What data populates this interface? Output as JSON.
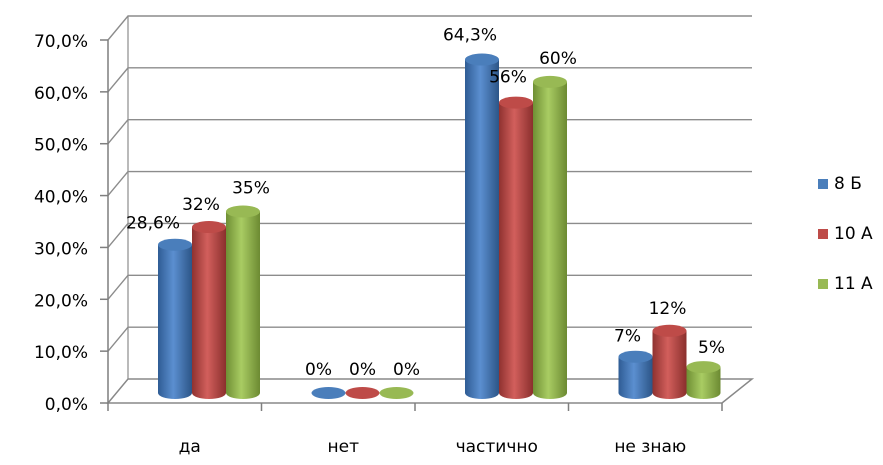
{
  "chart_data": {
    "type": "bar",
    "categories": [
      "да",
      "нет",
      "частично",
      "не знаю"
    ],
    "series": [
      {
        "name": "8 Б",
        "color": "#4a7ebb",
        "values": [
          28.6,
          0,
          64.3,
          7
        ],
        "labels": [
          "28,6%",
          "0%",
          "64,3%",
          "7%"
        ]
      },
      {
        "name": "10 А",
        "color": "#be4b48",
        "values": [
          32,
          0,
          56,
          12
        ],
        "labels": [
          "32%",
          "0%",
          "56%",
          "12%"
        ]
      },
      {
        "name": "11 А",
        "color": "#98b954",
        "values": [
          35,
          0,
          60,
          5
        ],
        "labels": [
          "35%",
          "0%",
          "60%",
          "5%"
        ]
      }
    ],
    "ylim": [
      0,
      70
    ],
    "yticks": [
      "0,0%",
      "10,0%",
      "20,0%",
      "30,0%",
      "40,0%",
      "50,0%",
      "60,0%",
      "70,0%"
    ],
    "grid": true,
    "legend_position": "right",
    "title": "",
    "xlabel": "",
    "ylabel": ""
  }
}
